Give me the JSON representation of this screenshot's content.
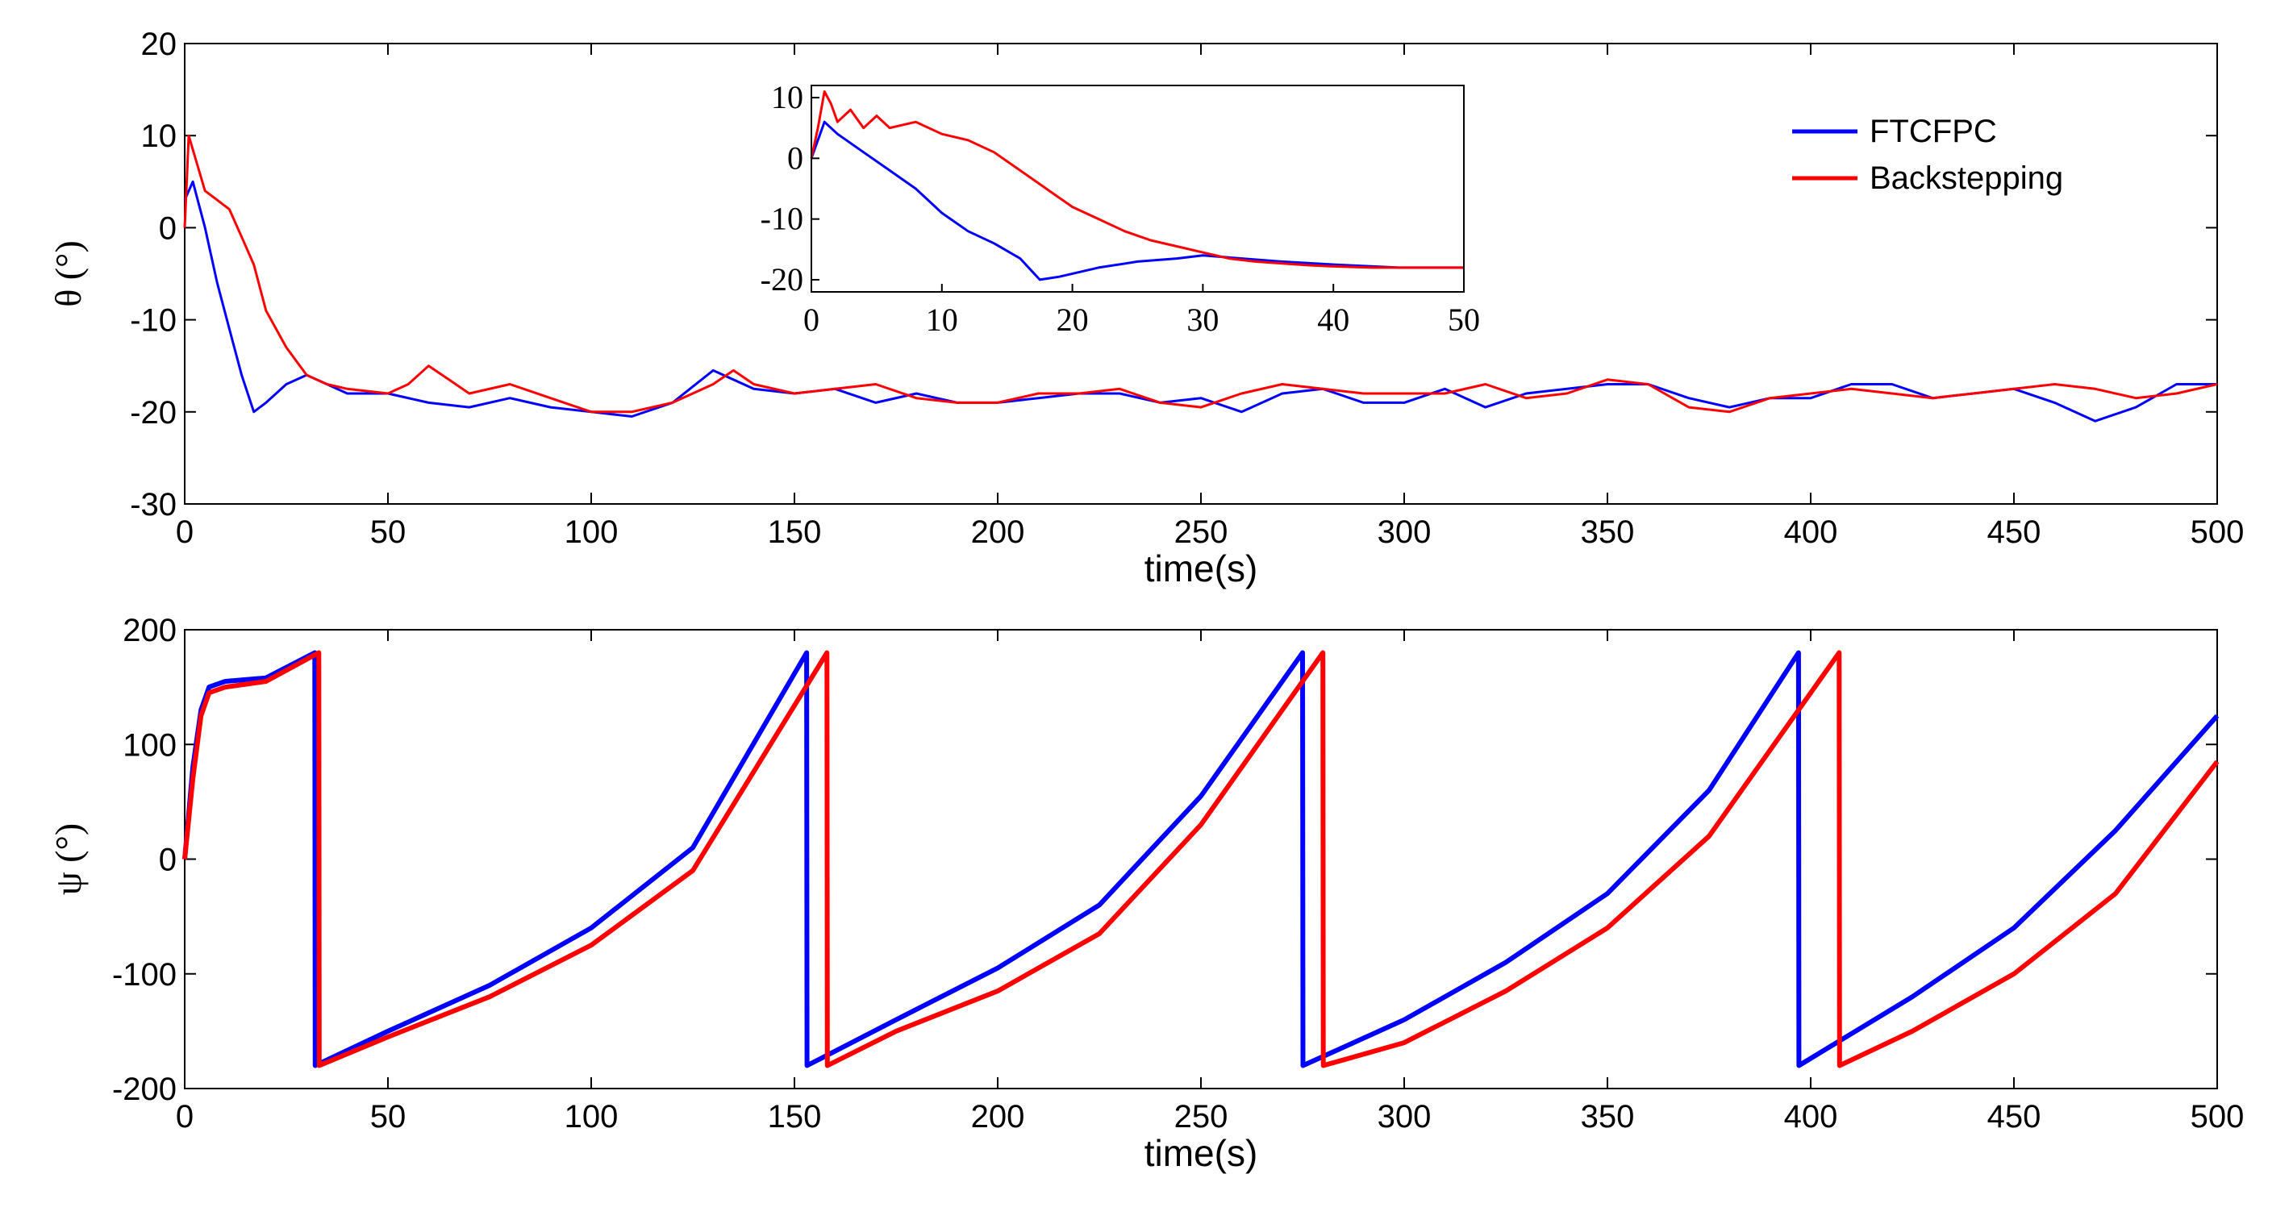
{
  "chart_data": [
    {
      "type": "line",
      "xlabel": "time(s)",
      "ylabel": "θ (°)",
      "xlim": [
        0,
        500
      ],
      "ylim": [
        -30,
        20
      ],
      "xticks": [
        0,
        50,
        100,
        150,
        200,
        250,
        300,
        350,
        400,
        450,
        500
      ],
      "yticks": [
        -30,
        -20,
        -10,
        0,
        10,
        20
      ],
      "legend": {
        "placement": "top-right",
        "entries": [
          "FTCFPC",
          "Backstepping"
        ]
      },
      "colors": {
        "FTCFPC": "#0000ff",
        "Backstepping": "#ff0000"
      },
      "series": [
        {
          "name": "FTCFPC",
          "x": [
            0,
            2,
            5,
            8,
            11,
            14,
            17,
            20,
            25,
            30,
            40,
            50,
            60,
            70,
            80,
            90,
            100,
            110,
            120,
            130,
            140,
            150,
            160,
            170,
            180,
            190,
            200,
            210,
            220,
            230,
            240,
            250,
            260,
            270,
            280,
            290,
            300,
            310,
            320,
            330,
            340,
            350,
            360,
            370,
            380,
            390,
            400,
            410,
            420,
            430,
            440,
            450,
            460,
            470,
            480,
            490,
            500
          ],
          "values": [
            3,
            5,
            0,
            -6,
            -11,
            -16,
            -20,
            -19,
            -17,
            -16,
            -18,
            -18,
            -19,
            -19.5,
            -18.5,
            -19.5,
            -20,
            -20.5,
            -19,
            -15.5,
            -17.5,
            -18,
            -17.5,
            -19,
            -18,
            -19,
            -19,
            -18.5,
            -18,
            -18,
            -19,
            -18.5,
            -20,
            -18,
            -17.5,
            -19,
            -19,
            -17.5,
            -19.5,
            -18,
            -17.5,
            -17,
            -17,
            -18.5,
            -19.5,
            -18.5,
            -18.5,
            -17,
            -17,
            -18.5,
            -18,
            -17.5,
            -19,
            -21,
            -19.5,
            -17,
            -17
          ]
        },
        {
          "name": "Backstepping",
          "x": [
            0,
            1,
            3,
            5,
            8,
            11,
            14,
            17,
            20,
            25,
            30,
            35,
            40,
            50,
            55,
            60,
            65,
            70,
            80,
            90,
            100,
            110,
            120,
            130,
            135,
            140,
            150,
            160,
            170,
            180,
            190,
            200,
            210,
            220,
            230,
            240,
            250,
            260,
            270,
            280,
            290,
            300,
            310,
            320,
            330,
            340,
            350,
            360,
            370,
            380,
            390,
            400,
            410,
            420,
            430,
            440,
            450,
            460,
            470,
            480,
            490,
            500
          ],
          "values": [
            0,
            10,
            7,
            4,
            3,
            2,
            -1,
            -4,
            -9,
            -13,
            -16,
            -17,
            -17.5,
            -18,
            -17,
            -15,
            -16.5,
            -18,
            -17,
            -18.5,
            -20,
            -20,
            -19,
            -17,
            -15.5,
            -17,
            -18,
            -17.5,
            -17,
            -18.5,
            -19,
            -19,
            -18,
            -18,
            -17.5,
            -19,
            -19.5,
            -18,
            -17,
            -17.5,
            -18,
            -18,
            -18,
            -17,
            -18.5,
            -18,
            -16.5,
            -17,
            -19.5,
            -20,
            -18.5,
            -18,
            -17.5,
            -18,
            -18.5,
            -18,
            -17.5,
            -17,
            -17.5,
            -18.5,
            -18,
            -17
          ]
        }
      ],
      "inset": {
        "xlim": [
          0,
          50
        ],
        "ylim": [
          -22,
          12
        ],
        "xticks": [
          0,
          10,
          20,
          30,
          40,
          50
        ],
        "yticks": [
          -20,
          -10,
          0,
          10
        ],
        "series": [
          {
            "name": "FTCFPC",
            "x": [
              0,
              1,
              2,
              4,
              6,
              8,
              10,
              12,
              14,
              16,
              17.5,
              19,
              20,
              22,
              25,
              28,
              30,
              33,
              36,
              40,
              45,
              50
            ],
            "values": [
              0,
              6,
              4,
              1,
              -2,
              -5,
              -9,
              -12,
              -14,
              -16.5,
              -20,
              -19.5,
              -19,
              -18,
              -17,
              -16.5,
              -16,
              -16.5,
              -17,
              -17.5,
              -18,
              -18
            ]
          },
          {
            "name": "Backstepping",
            "x": [
              0,
              0.5,
              1,
              1.5,
              2,
              3,
              4,
              5,
              6,
              8,
              10,
              12,
              14,
              16,
              18,
              20,
              22,
              24,
              26,
              28,
              30,
              32,
              34,
              36,
              38,
              40,
              43,
              46,
              50
            ],
            "values": [
              0,
              5,
              11,
              9,
              6,
              8,
              5,
              7,
              5,
              6,
              4,
              3,
              1,
              -2,
              -5,
              -8,
              -10,
              -12,
              -13.5,
              -14.5,
              -15.5,
              -16.5,
              -17,
              -17.3,
              -17.6,
              -17.8,
              -18,
              -18,
              -18
            ]
          }
        ]
      }
    },
    {
      "type": "line",
      "xlabel": "time(s)",
      "ylabel": "ψ (°)",
      "xlim": [
        0,
        500
      ],
      "ylim": [
        -200,
        200
      ],
      "xticks": [
        0,
        50,
        100,
        150,
        200,
        250,
        300,
        350,
        400,
        450,
        500
      ],
      "yticks": [
        -200,
        -100,
        0,
        100,
        200
      ],
      "series": [
        {
          "name": "FTCFPC",
          "x": [
            0,
            2,
            4,
            6,
            10,
            20,
            32,
            32.1,
            50,
            75,
            100,
            125,
            153,
            153.1,
            175,
            200,
            225,
            250,
            275,
            275.1,
            300,
            325,
            350,
            375,
            397,
            397.1,
            425,
            450,
            475,
            500
          ],
          "values": [
            0,
            80,
            130,
            150,
            155,
            158,
            180,
            -180,
            -150,
            -110,
            -60,
            10,
            180,
            -180,
            -140,
            -95,
            -40,
            55,
            180,
            -180,
            -140,
            -90,
            -30,
            60,
            180,
            -180,
            -120,
            -60,
            25,
            125
          ]
        },
        {
          "name": "Backstepping",
          "x": [
            0,
            2,
            4,
            6,
            10,
            20,
            33,
            33.1,
            50,
            75,
            100,
            125,
            158,
            158.1,
            175,
            200,
            225,
            250,
            280,
            280.1,
            300,
            325,
            350,
            375,
            407,
            407.1,
            425,
            450,
            475,
            500
          ],
          "values": [
            0,
            70,
            125,
            145,
            150,
            155,
            180,
            -180,
            -155,
            -120,
            -75,
            -10,
            180,
            -180,
            -150,
            -115,
            -65,
            30,
            180,
            -180,
            -160,
            -115,
            -60,
            20,
            180,
            -180,
            -150,
            -100,
            -30,
            85
          ]
        }
      ]
    }
  ]
}
